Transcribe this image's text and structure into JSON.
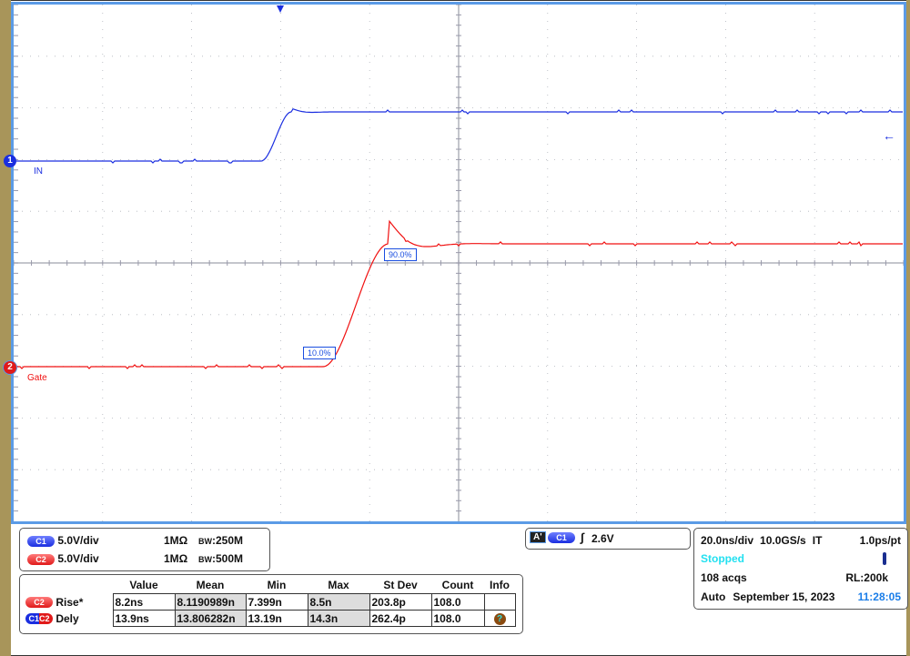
{
  "channels": [
    {
      "id": "C1",
      "marker": "1",
      "label": "IN",
      "scale": "5.0V/div",
      "impedance": "1MΩ",
      "bandwidth": "250M",
      "color": "#1a2ee0"
    },
    {
      "id": "C2",
      "marker": "2",
      "label": "Gate",
      "scale": "5.0V/div",
      "impedance": "1MΩ",
      "bandwidth": "500M",
      "color": "#f01010"
    }
  ],
  "bw_label": "BW",
  "trace_markers": {
    "low": "10.0%",
    "high": "90.0%"
  },
  "trigger": {
    "badge": "A'",
    "source": "C1",
    "slope": "rising",
    "level": "2.6V"
  },
  "timebase": {
    "scale": "20.0ns/div",
    "rate": "10.0GS/s",
    "mode": "IT",
    "resolution": "1.0ps/pt",
    "status": "Stopped",
    "acqs": "108 acqs",
    "record_length": "RL:200k",
    "trigger_mode": "Auto",
    "date": "September 15, 2023",
    "time": "11:28:05"
  },
  "measurements": {
    "headers": [
      "Value",
      "Mean",
      "Min",
      "Max",
      "St Dev",
      "Count",
      "Info"
    ],
    "rows": [
      {
        "source": "C2",
        "name": "Rise*",
        "cells": [
          "8.2ns",
          "8.1190989n",
          "7.399n",
          "8.5n",
          "203.8p",
          "108.0"
        ]
      },
      {
        "source": "C1C2",
        "name": "Dely",
        "cells": [
          "13.9ns",
          "13.806282n",
          "13.19n",
          "14.3n",
          "262.4p",
          "108.0"
        ]
      }
    ]
  },
  "colors": {
    "grid": "#b0b4bc",
    "border": "#5b9be6",
    "bezel": "#a8955a",
    "status": "#22e0f0",
    "time": "#1a7de8"
  }
}
